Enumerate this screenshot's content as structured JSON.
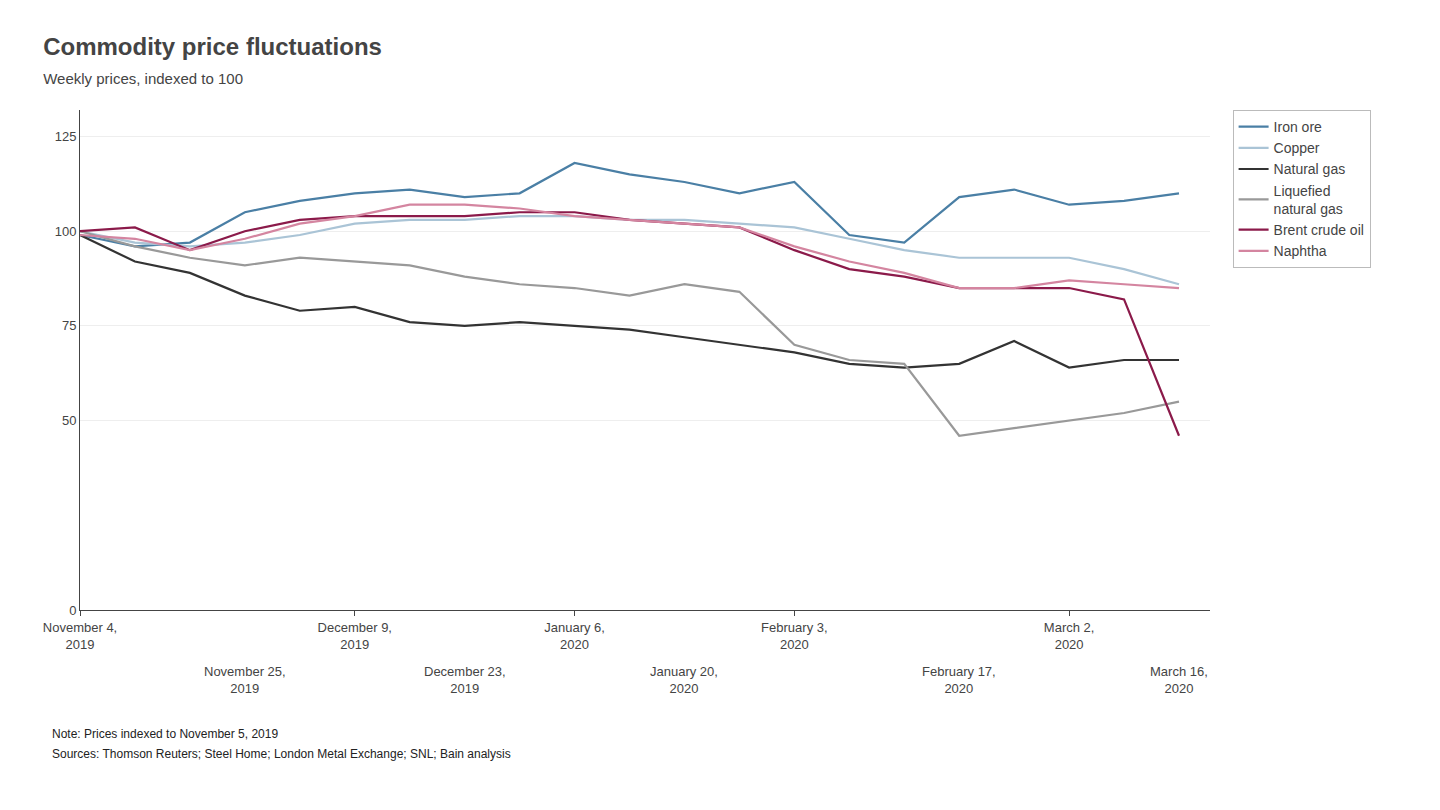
{
  "chart_data": {
    "type": "line",
    "title": "Commodity price fluctuations",
    "subtitle": "Weekly prices, indexed to 100",
    "note": "Note: Prices indexed to November 5, 2019",
    "sources": "Sources: Thomson Reuters; Steel Home; London Metal Exchange; SNL; Bain analysis",
    "categories": [
      "November 4,\n2019",
      null,
      null,
      "November 25,\n2019",
      null,
      "December 9,\n2019",
      null,
      "December 23,\n2019",
      null,
      "January 6,\n2020",
      null,
      "January 20,\n2020",
      null,
      "February 3,\n2020",
      null,
      null,
      "February 17,\n2020",
      null,
      "March 2,\n2020",
      null,
      "March 16,\n2020"
    ],
    "series": [
      {
        "name": "Iron ore",
        "color": "#4a7fa5",
        "values": [
          99,
          96,
          97,
          105,
          108,
          110,
          111,
          109,
          110,
          118,
          115,
          113,
          110,
          113,
          99,
          97,
          109,
          111,
          107,
          108,
          110
        ]
      },
      {
        "name": "Copper",
        "color": "#aac4d6",
        "values": [
          100,
          97,
          96,
          97,
          99,
          102,
          103,
          103,
          104,
          104,
          103,
          103,
          102,
          101,
          98,
          95,
          93,
          93,
          93,
          90,
          86
        ]
      },
      {
        "name": "Natural gas",
        "color": "#333333",
        "values": [
          99,
          92,
          89,
          83,
          79,
          80,
          76,
          75,
          76,
          75,
          74,
          72,
          70,
          68,
          65,
          64,
          65,
          71,
          64,
          66,
          66
        ]
      },
      {
        "name": "Liquefied\nnatural gas",
        "color": "#999999",
        "values": [
          100,
          96,
          93,
          91,
          93,
          92,
          91,
          88,
          86,
          85,
          83,
          86,
          84,
          70,
          66,
          65,
          46,
          48,
          50,
          52,
          55
        ]
      },
      {
        "name": "Brent crude oil",
        "color": "#8B1A4A",
        "values": [
          100,
          101,
          95,
          100,
          103,
          104,
          104,
          104,
          105,
          105,
          103,
          102,
          101,
          95,
          90,
          88,
          85,
          85,
          85,
          82,
          46
        ]
      },
      {
        "name": "Naphtha",
        "color": "#d485a0",
        "values": [
          99,
          98,
          95,
          98,
          102,
          104,
          107,
          107,
          106,
          104,
          103,
          102,
          101,
          96,
          92,
          89,
          85,
          85,
          87,
          86,
          85
        ]
      }
    ],
    "ylim": [
      0,
      132
    ],
    "yticks": [
      0,
      50,
      75,
      100,
      125
    ],
    "grid": true,
    "legend": "right"
  }
}
